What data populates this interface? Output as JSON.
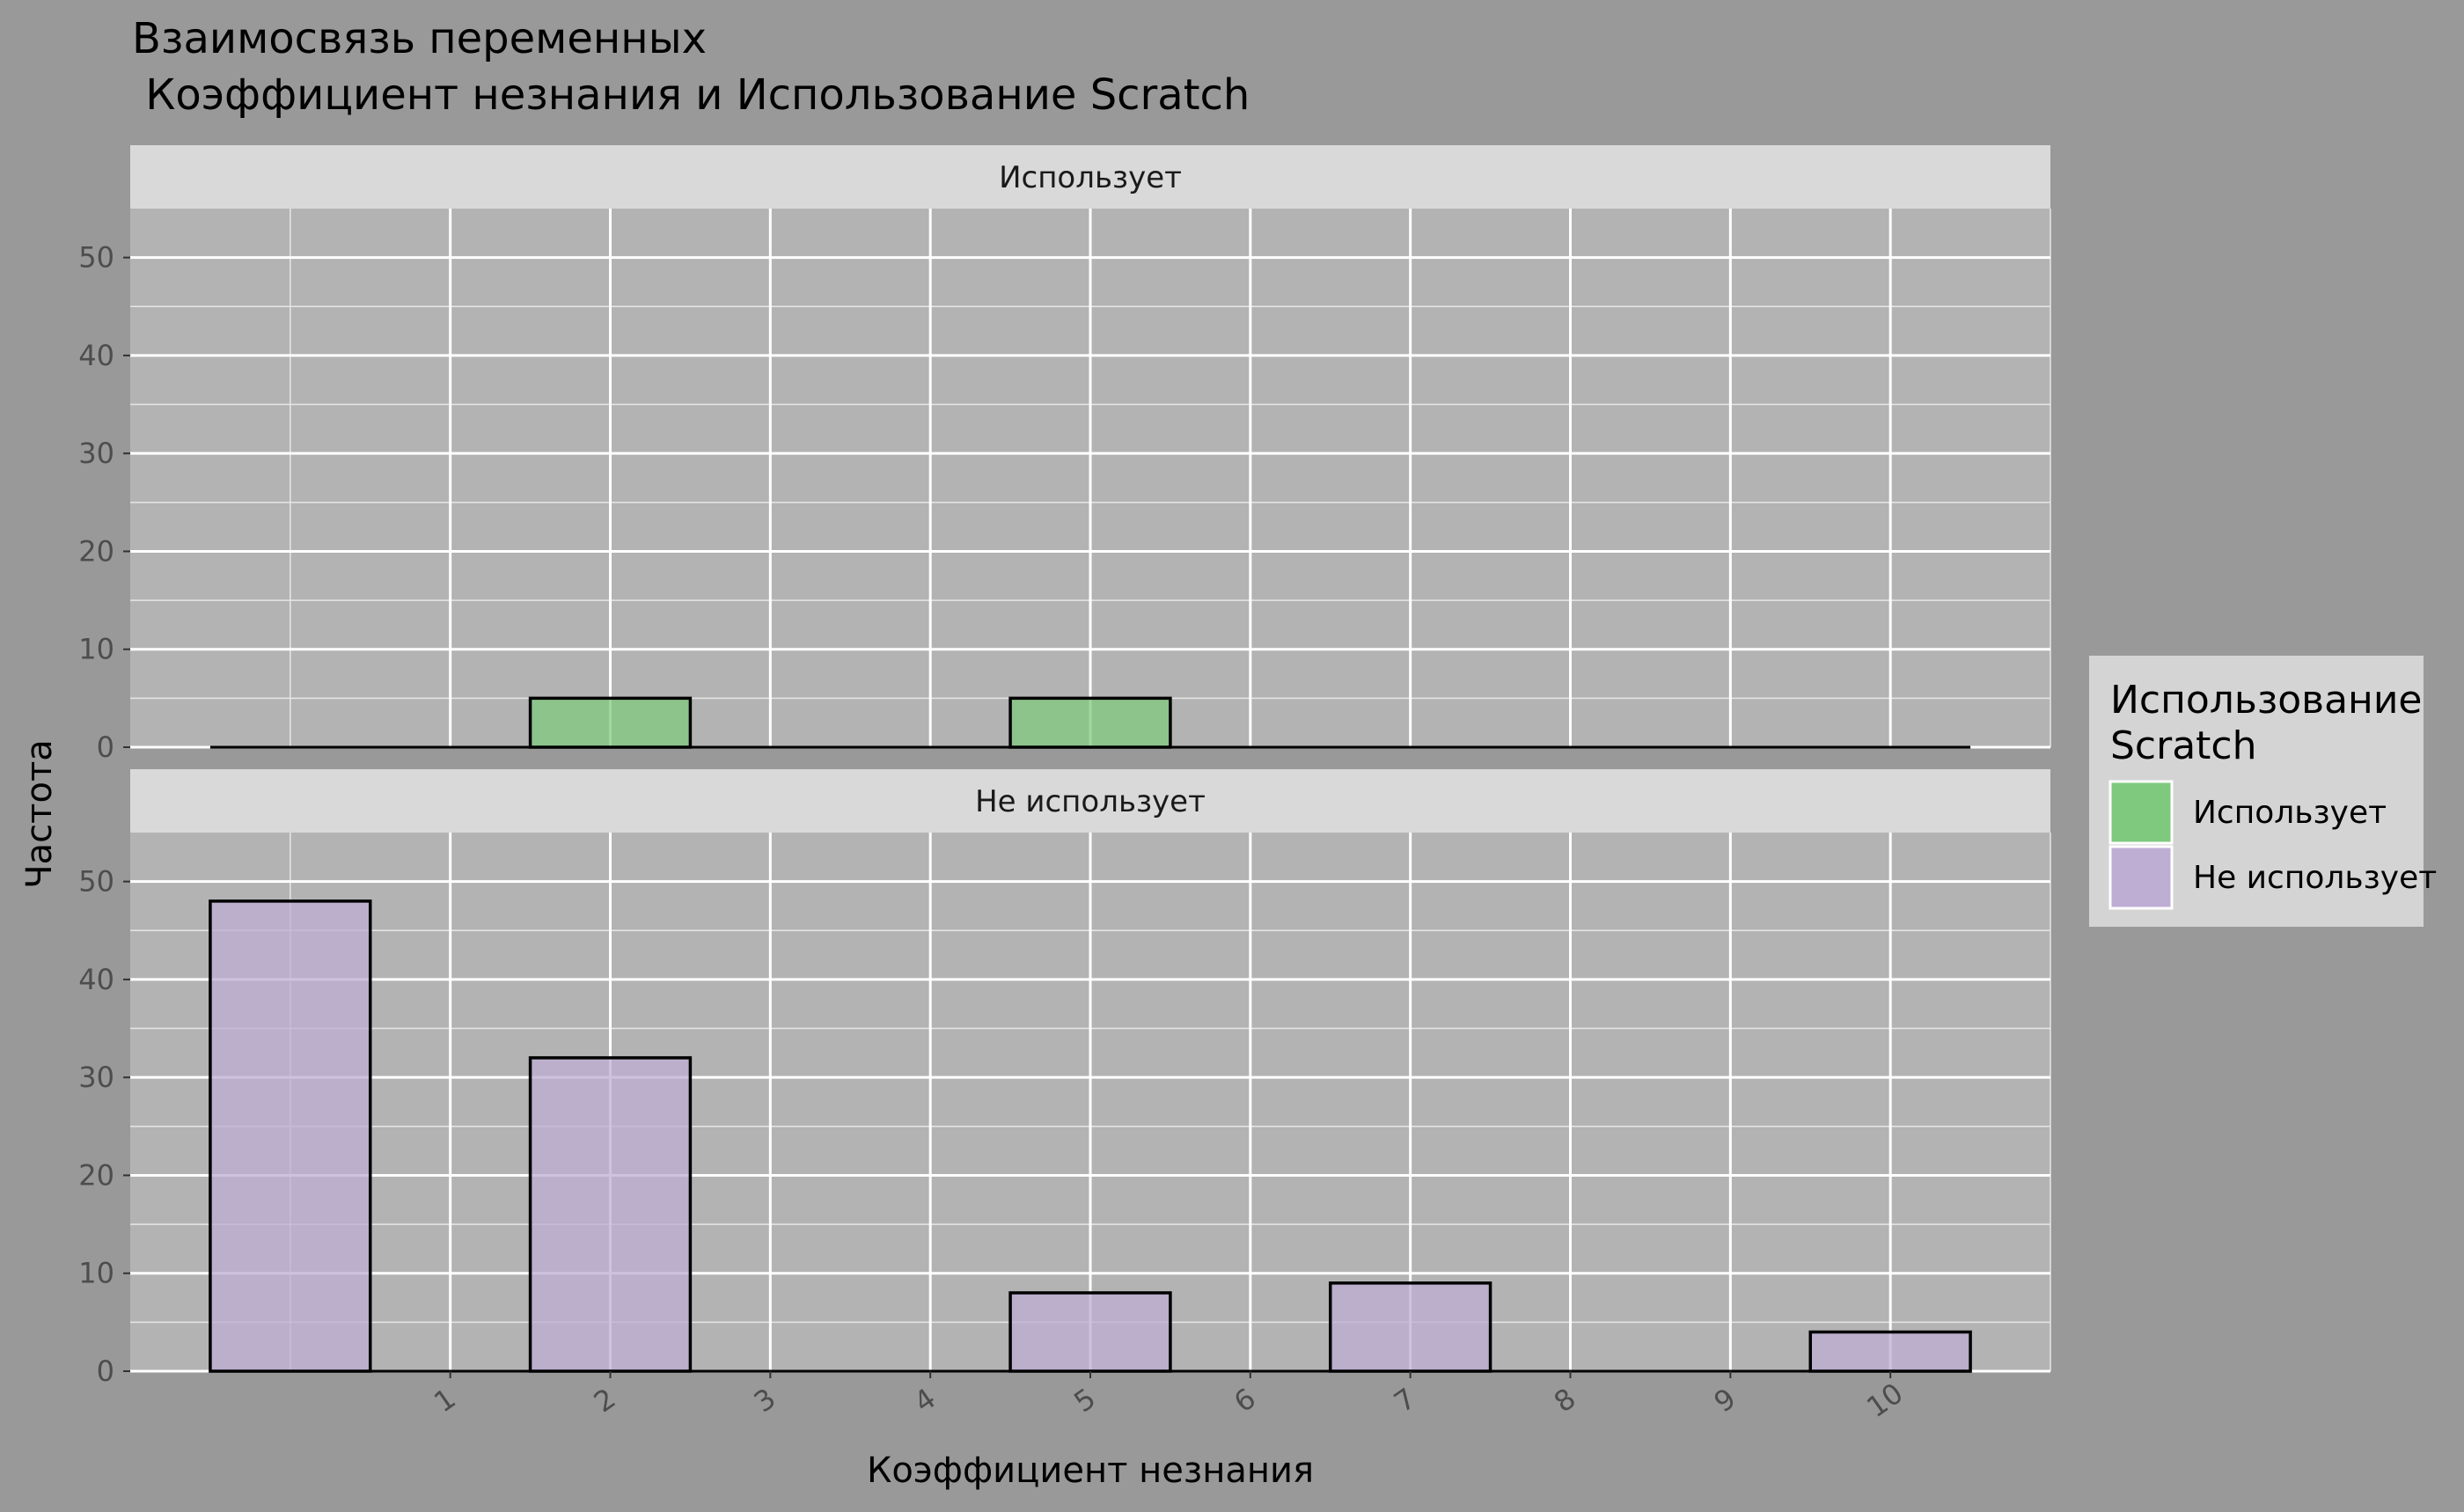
{
  "chart_data": {
    "type": "bar",
    "title_line1": "Взаимосвязь переменных",
    "title_line2": " Коэффициент незнания и Использование Scratch",
    "xlabel": "Коэффициент незнания",
    "ylabel": "Частота",
    "x_ticks": [
      1,
      2,
      3,
      4,
      5,
      6,
      7,
      8,
      9,
      10
    ],
    "y_ticks": [
      0,
      10,
      20,
      30,
      40,
      50
    ],
    "ylim": [
      0,
      55
    ],
    "x_range": [
      -1,
      11
    ],
    "bin_width": 1,
    "bin_centers": [
      0,
      2,
      5,
      7,
      10
    ],
    "grid": true,
    "legend_position": "right",
    "legend_title_line1": "Использование",
    "legend_title_line2": "Scratch",
    "panels": [
      {
        "name": "Использует",
        "strip_label": "Использует",
        "color": "#7fc97f",
        "baseline_from": 0,
        "baseline_to": 11,
        "bars": [
          {
            "x": 2,
            "value": 5
          },
          {
            "x": 5,
            "value": 5
          }
        ]
      },
      {
        "name": "Не использует",
        "strip_label": "Не использует",
        "color": "#beaed4",
        "baseline_from": 0,
        "baseline_to": 11,
        "bars": [
          {
            "x": 0,
            "value": 48
          },
          {
            "x": 2,
            "value": 32
          },
          {
            "x": 5,
            "value": 8
          },
          {
            "x": 7,
            "value": 9
          },
          {
            "x": 10,
            "value": 4
          }
        ]
      }
    ],
    "legend": [
      {
        "label": "Использует",
        "color": "#7fc97f"
      },
      {
        "label": "Не использует",
        "color": "#beaed4"
      }
    ]
  }
}
